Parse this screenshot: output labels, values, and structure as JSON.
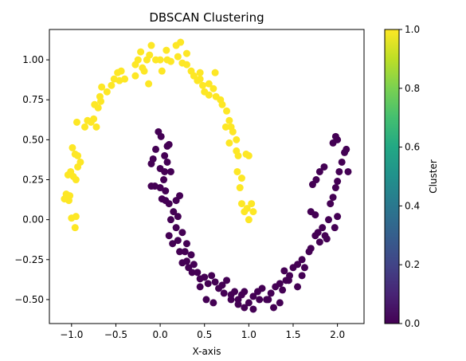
{
  "chart_data": {
    "type": "scatter",
    "title": "DBSCAN Clustering",
    "xlabel": "X-axis",
    "ylabel": "",
    "xlim": [
      -1.25,
      2.3
    ],
    "ylim": [
      -0.65,
      1.19
    ],
    "xticks": [
      "−1.0",
      "−0.5",
      "0.0",
      "0.5",
      "1.0",
      "1.5",
      "2.0"
    ],
    "xtick_values": [
      -1.0,
      -0.5,
      0.0,
      0.5,
      1.0,
      1.5,
      2.0
    ],
    "yticks": [
      "−0.50",
      "−0.25",
      "0.00",
      "0.25",
      "0.50",
      "0.75",
      "1.00"
    ],
    "ytick_values": [
      -0.5,
      -0.25,
      0.0,
      0.25,
      0.5,
      0.75,
      1.0
    ],
    "grid": false,
    "colorbar": {
      "label": "Cluster",
      "min": 0.0,
      "max": 1.0,
      "ticks": [
        "0.0",
        "0.2",
        "0.4",
        "0.6",
        "0.8",
        "1.0"
      ],
      "tick_values": [
        0.0,
        0.2,
        0.4,
        0.6,
        0.8,
        1.0
      ],
      "colormap": "viridis"
    },
    "colors": {
      "cluster_0": "#440154",
      "cluster_1": "#fde725"
    },
    "series": [
      {
        "cluster": 1,
        "points": [
          [
            -1.06,
            0.16
          ],
          [
            -1.08,
            0.13
          ],
          [
            -1.03,
            0.12
          ],
          [
            -1.02,
            0.15
          ],
          [
            -1.0,
            0.01
          ],
          [
            -0.95,
            0.02
          ],
          [
            -0.96,
            -0.05
          ],
          [
            -1.04,
            0.28
          ],
          [
            -1.01,
            0.3
          ],
          [
            -0.98,
            0.27
          ],
          [
            -0.95,
            0.25
          ],
          [
            -0.93,
            0.33
          ],
          [
            -0.99,
            0.45
          ],
          [
            -0.96,
            0.41
          ],
          [
            -0.93,
            0.4
          ],
          [
            -0.9,
            0.36
          ],
          [
            -0.94,
            0.61
          ],
          [
            -0.85,
            0.58
          ],
          [
            -0.82,
            0.62
          ],
          [
            -0.78,
            0.61
          ],
          [
            -0.75,
            0.63
          ],
          [
            -0.72,
            0.58
          ],
          [
            -0.74,
            0.72
          ],
          [
            -0.7,
            0.7
          ],
          [
            -0.67,
            0.74
          ],
          [
            -0.68,
            0.77
          ],
          [
            -0.66,
            0.83
          ],
          [
            -0.6,
            0.8
          ],
          [
            -0.55,
            0.84
          ],
          [
            -0.52,
            0.88
          ],
          [
            -0.46,
            0.87
          ],
          [
            -0.48,
            0.92
          ],
          [
            -0.44,
            0.93
          ],
          [
            -0.4,
            0.88
          ],
          [
            -0.28,
            0.97
          ],
          [
            -0.25,
            1.0
          ],
          [
            -0.22,
            1.05
          ],
          [
            -0.2,
            0.95
          ],
          [
            -0.15,
            1.0
          ],
          [
            -0.12,
            1.03
          ],
          [
            -0.1,
            1.09
          ],
          [
            -0.05,
            1.0
          ],
          [
            0.0,
            1.0
          ],
          [
            0.02,
            0.93
          ],
          [
            0.07,
            1.06
          ],
          [
            0.12,
            0.99
          ],
          [
            0.18,
            1.09
          ],
          [
            0.23,
            1.11
          ],
          [
            0.25,
            0.98
          ],
          [
            0.3,
            0.97
          ],
          [
            0.35,
            0.93
          ],
          [
            0.38,
            0.9
          ],
          [
            0.42,
            0.87
          ],
          [
            0.45,
            0.88
          ],
          [
            0.48,
            0.84
          ],
          [
            0.5,
            0.8
          ],
          [
            0.55,
            0.85
          ],
          [
            0.6,
            0.82
          ],
          [
            0.63,
            0.77
          ],
          [
            0.68,
            0.75
          ],
          [
            0.7,
            0.72
          ],
          [
            0.75,
            0.68
          ],
          [
            0.78,
            0.62
          ],
          [
            0.8,
            0.58
          ],
          [
            0.82,
            0.55
          ],
          [
            0.78,
            0.48
          ],
          [
            0.86,
            0.5
          ],
          [
            0.88,
            0.4
          ],
          [
            0.87,
            0.3
          ],
          [
            0.9,
            0.2
          ],
          [
            0.92,
            0.1
          ],
          [
            0.95,
            0.05
          ],
          [
            0.98,
            0.07
          ],
          [
            1.0,
            0.0
          ],
          [
            1.03,
            0.1
          ],
          [
            1.05,
            0.05
          ],
          [
            1.0,
            0.4
          ],
          [
            0.97,
            0.41
          ],
          [
            0.92,
            0.26
          ],
          [
            0.86,
            0.43
          ],
          [
            -0.18,
            0.93
          ],
          [
            -0.28,
            0.9
          ],
          [
            -0.13,
            0.85
          ],
          [
            0.08,
            1.0
          ],
          [
            0.3,
            1.04
          ],
          [
            0.55,
            0.78
          ],
          [
            0.74,
            0.58
          ],
          [
            0.62,
            0.92
          ],
          [
            0.45,
            0.92
          ],
          [
            0.2,
            1.02
          ]
        ]
      },
      {
        "cluster": 0,
        "points": [
          [
            -0.02,
            0.55
          ],
          [
            0.01,
            0.52
          ],
          [
            -0.05,
            0.44
          ],
          [
            -0.08,
            0.38
          ],
          [
            -0.1,
            0.35
          ],
          [
            0.0,
            0.32
          ],
          [
            0.05,
            0.3
          ],
          [
            0.12,
            0.3
          ],
          [
            0.1,
            0.47
          ],
          [
            0.08,
            0.46
          ],
          [
            0.0,
            0.2
          ],
          [
            -0.06,
            0.21
          ],
          [
            -0.1,
            0.21
          ],
          [
            0.02,
            0.13
          ],
          [
            0.06,
            0.12
          ],
          [
            0.1,
            0.1
          ],
          [
            0.15,
            0.05
          ],
          [
            0.12,
            0.0
          ],
          [
            0.18,
            -0.05
          ],
          [
            0.1,
            -0.1
          ],
          [
            0.14,
            -0.15
          ],
          [
            0.2,
            -0.13
          ],
          [
            0.22,
            -0.2
          ],
          [
            0.28,
            -0.2
          ],
          [
            0.25,
            -0.27
          ],
          [
            0.3,
            -0.26
          ],
          [
            0.35,
            -0.22
          ],
          [
            0.32,
            -0.3
          ],
          [
            0.36,
            -0.33
          ],
          [
            0.42,
            -0.33
          ],
          [
            0.45,
            -0.37
          ],
          [
            0.5,
            -0.36
          ],
          [
            0.54,
            -0.4
          ],
          [
            0.58,
            -0.35
          ],
          [
            0.62,
            -0.39
          ],
          [
            0.66,
            -0.43
          ],
          [
            0.7,
            -0.41
          ],
          [
            0.75,
            -0.38
          ],
          [
            0.8,
            -0.47
          ],
          [
            0.84,
            -0.45
          ],
          [
            0.88,
            -0.5
          ],
          [
            0.92,
            -0.47
          ],
          [
            0.95,
            -0.45
          ],
          [
            1.0,
            -0.52
          ],
          [
            1.05,
            -0.48
          ],
          [
            1.1,
            -0.45
          ],
          [
            1.15,
            -0.43
          ],
          [
            1.2,
            -0.5
          ],
          [
            1.25,
            -0.46
          ],
          [
            1.3,
            -0.42
          ],
          [
            1.35,
            -0.4
          ],
          [
            1.38,
            -0.44
          ],
          [
            1.42,
            -0.38
          ],
          [
            1.46,
            -0.35
          ],
          [
            1.5,
            -0.3
          ],
          [
            1.55,
            -0.28
          ],
          [
            1.6,
            -0.25
          ],
          [
            1.63,
            -0.3
          ],
          [
            1.68,
            -0.2
          ],
          [
            1.7,
            -0.18
          ],
          [
            1.75,
            -0.1
          ],
          [
            1.78,
            -0.08
          ],
          [
            1.8,
            -0.14
          ],
          [
            1.83,
            -0.05
          ],
          [
            1.86,
            -0.1
          ],
          [
            1.88,
            -0.12
          ],
          [
            1.9,
            0.0
          ],
          [
            1.92,
            0.1
          ],
          [
            1.95,
            0.14
          ],
          [
            1.98,
            0.2
          ],
          [
            2.0,
            0.24
          ],
          [
            2.02,
            0.3
          ],
          [
            2.05,
            0.36
          ],
          [
            2.08,
            0.42
          ],
          [
            2.1,
            0.44
          ],
          [
            2.12,
            0.3
          ],
          [
            2.0,
            0.5
          ],
          [
            1.98,
            0.52
          ],
          [
            1.95,
            0.48
          ],
          [
            1.85,
            0.33
          ],
          [
            1.8,
            0.3
          ],
          [
            1.76,
            0.25
          ],
          [
            1.72,
            0.22
          ],
          [
            1.7,
            0.05
          ],
          [
            1.75,
            0.03
          ],
          [
            2.0,
            0.02
          ],
          [
            1.97,
            -0.05
          ],
          [
            1.6,
            -0.35
          ],
          [
            1.55,
            -0.42
          ],
          [
            1.45,
            -0.38
          ],
          [
            1.4,
            -0.32
          ],
          [
            1.35,
            -0.52
          ],
          [
            1.28,
            -0.55
          ],
          [
            1.22,
            -0.5
          ],
          [
            1.12,
            -0.5
          ],
          [
            1.05,
            -0.56
          ],
          [
            0.95,
            -0.55
          ],
          [
            0.88,
            -0.53
          ],
          [
            0.8,
            -0.5
          ],
          [
            0.72,
            -0.46
          ],
          [
            0.6,
            -0.52
          ],
          [
            0.52,
            -0.5
          ],
          [
            0.45,
            -0.42
          ],
          [
            0.38,
            -0.28
          ],
          [
            0.3,
            -0.15
          ],
          [
            0.25,
            -0.08
          ],
          [
            0.2,
            0.02
          ],
          [
            0.18,
            0.12
          ],
          [
            0.22,
            0.15
          ],
          [
            0.06,
            0.18
          ],
          [
            0.04,
            0.25
          ],
          [
            0.08,
            0.36
          ],
          [
            0.05,
            0.4
          ]
        ]
      }
    ]
  }
}
